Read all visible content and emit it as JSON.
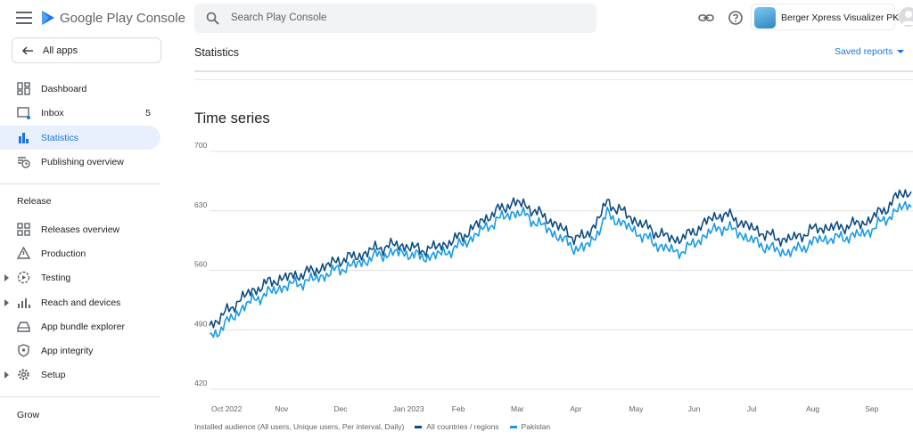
{
  "header": {
    "brand": "Google Play Console",
    "search_placeholder": "Search Play Console",
    "app_name": "Berger Xpress Visualizer PK"
  },
  "sidebar": {
    "all_apps": "All apps",
    "items": [
      {
        "label": "Dashboard",
        "icon": "dashboard-icon"
      },
      {
        "label": "Inbox",
        "icon": "inbox-icon",
        "count": "5"
      },
      {
        "label": "Statistics",
        "icon": "bar-chart-icon",
        "active": true
      },
      {
        "label": "Publishing overview",
        "icon": "publishing-icon"
      }
    ],
    "release_heading": "Release",
    "release_items": [
      {
        "label": "Releases overview",
        "icon": "grid-icon"
      },
      {
        "label": "Production",
        "icon": "warning-icon"
      },
      {
        "label": "Testing",
        "icon": "play-circle-icon"
      },
      {
        "label": "Reach and devices",
        "icon": "signal-icon"
      },
      {
        "label": "App bundle explorer",
        "icon": "bundle-icon"
      },
      {
        "label": "App integrity",
        "icon": "shield-icon"
      },
      {
        "label": "Setup",
        "icon": "gear-icon"
      }
    ],
    "grow_heading": "Grow"
  },
  "main": {
    "page_title": "Statistics",
    "saved_reports": "Saved reports",
    "section_title": "Time series",
    "legend_caption": "Installed audience (All users, Unique users, Per interval, Daily)"
  },
  "colors": {
    "accent": "#1a73e8",
    "series_all": "#0d4c82",
    "series_pk": "#1a9be6"
  },
  "chart_data": {
    "type": "line",
    "y_ticks": [
      420,
      490,
      560,
      630,
      700
    ],
    "ylim": [
      420,
      700
    ],
    "x_tick_labels": [
      "Oct 2022",
      "Nov",
      "Dec",
      "Jan 2023",
      "Feb",
      "Mar",
      "Apr",
      "May",
      "Jun",
      "Jul",
      "Aug",
      "Sep"
    ],
    "x_range": [
      "2022-10-01",
      "2023-09-30"
    ],
    "series": [
      {
        "name": "All countries / regions",
        "values": [
          495,
          505,
          518,
          530,
          538,
          545,
          550,
          553,
          556,
          560,
          565,
          572,
          575,
          578,
          585,
          588,
          590,
          588,
          584,
          586,
          590,
          596,
          604,
          615,
          625,
          633,
          640,
          637,
          628,
          620,
          610,
          600,
          598,
          615,
          640,
          632,
          622,
          614,
          606,
          600,
          596,
          602,
          612,
          622,
          626,
          620,
          612,
          606,
          600,
          596,
          598,
          604,
          610,
          610,
          611,
          614,
          616,
          625,
          635,
          650,
          651
        ]
      },
      {
        "name": "Pakistan",
        "values": [
          480,
          492,
          505,
          518,
          527,
          533,
          539,
          543,
          546,
          550,
          555,
          561,
          565,
          569,
          576,
          579,
          581,
          580,
          575,
          577,
          580,
          586,
          594,
          604,
          614,
          622,
          628,
          625,
          616,
          608,
          598,
          588,
          585,
          600,
          626,
          618,
          609,
          601,
          592,
          586,
          581,
          587,
          597,
          607,
          611,
          606,
          598,
          591,
          586,
          581,
          583,
          589,
          596,
          597,
          598,
          601,
          603,
          612,
          622,
          633,
          637
        ]
      }
    ]
  }
}
